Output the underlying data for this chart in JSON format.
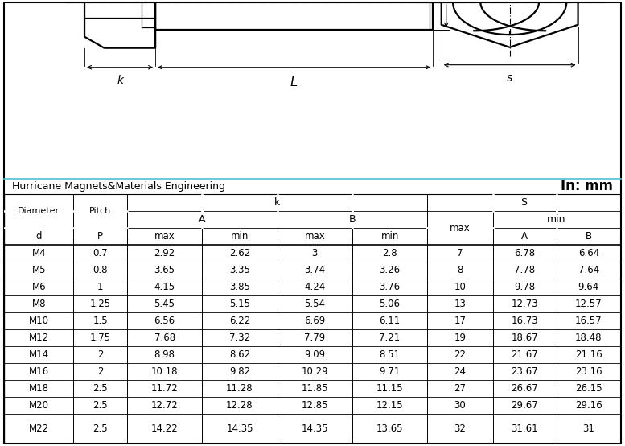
{
  "company": "Hurricane Magnets&Materials Engineering",
  "unit": "In: mm",
  "rows": [
    [
      "M4",
      "0.7",
      "2.92",
      "2.62",
      "3",
      "2.8",
      "7",
      "6.78",
      "6.64"
    ],
    [
      "M5",
      "0.8",
      "3.65",
      "3.35",
      "3.74",
      "3.26",
      "8",
      "7.78",
      "7.64"
    ],
    [
      "M6",
      "1",
      "4.15",
      "3.85",
      "4.24",
      "3.76",
      "10",
      "9.78",
      "9.64"
    ],
    [
      "M8",
      "1.25",
      "5.45",
      "5.15",
      "5.54",
      "5.06",
      "13",
      "12.73",
      "12.57"
    ],
    [
      "M10",
      "1.5",
      "6.56",
      "6.22",
      "6.69",
      "6.11",
      "17",
      "16.73",
      "16.57"
    ],
    [
      "M12",
      "1.75",
      "7.68",
      "7.32",
      "7.79",
      "7.21",
      "19",
      "18.67",
      "18.48"
    ],
    [
      "M14",
      "2",
      "8.98",
      "8.62",
      "9.09",
      "8.51",
      "22",
      "21.67",
      "21.16"
    ],
    [
      "M16",
      "2",
      "10.18",
      "9.82",
      "10.29",
      "9.71",
      "24",
      "23.67",
      "23.16"
    ],
    [
      "M18",
      "2.5",
      "11.72",
      "11.28",
      "11.85",
      "11.15",
      "27",
      "26.67",
      "26.15"
    ],
    [
      "M20",
      "2.5",
      "12.72",
      "12.28",
      "12.85",
      "12.15",
      "30",
      "29.67",
      "29.16"
    ],
    [
      "M22",
      "2.5",
      "14.22",
      "14.35",
      "14.35",
      "13.65",
      "32",
      "31.61",
      "31"
    ]
  ]
}
